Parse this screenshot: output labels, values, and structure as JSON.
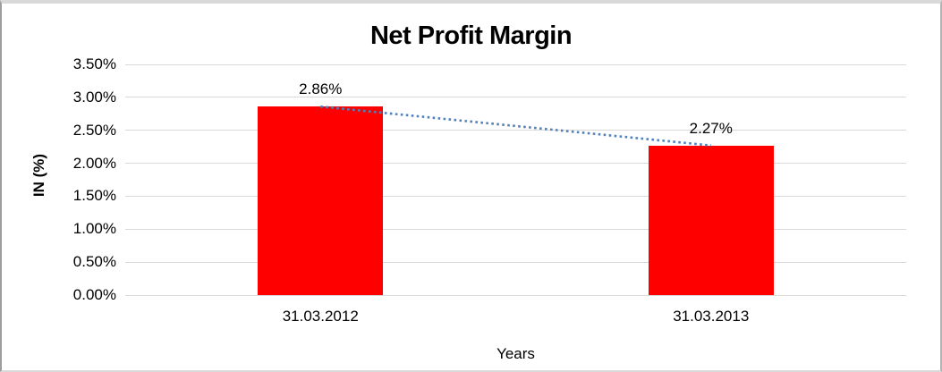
{
  "frame": {
    "background": "#ffffff",
    "border_color": "#9e9e9e",
    "strip_color": "#d9d9d9"
  },
  "chart_data": {
    "type": "bar",
    "title": "Net Profit Margin",
    "xlabel": "Years",
    "ylabel": "IN (%)",
    "categories": [
      "31.03.2012",
      "31.03.2013"
    ],
    "series": [
      {
        "name": "Net Profit Margin",
        "values": [
          2.86,
          2.27
        ]
      }
    ],
    "data_labels": [
      "2.86%",
      "2.27%"
    ],
    "ylim": [
      0,
      3.5
    ],
    "ytick_step": 0.5,
    "ytick_labels": [
      "3.50%",
      "3.00%",
      "2.50%",
      "2.00%",
      "1.50%",
      "1.00%",
      "0.50%",
      "0.00%"
    ],
    "grid": true,
    "legend": "none",
    "bar_color": "#ff0000",
    "gridline_color": "#d9d9d9",
    "label_color": "#000000",
    "trendline": {
      "type": "linear",
      "style": "dotted",
      "color": "#4f81bd",
      "from": [
        0,
        2.86
      ],
      "to": [
        1,
        2.27
      ]
    }
  }
}
